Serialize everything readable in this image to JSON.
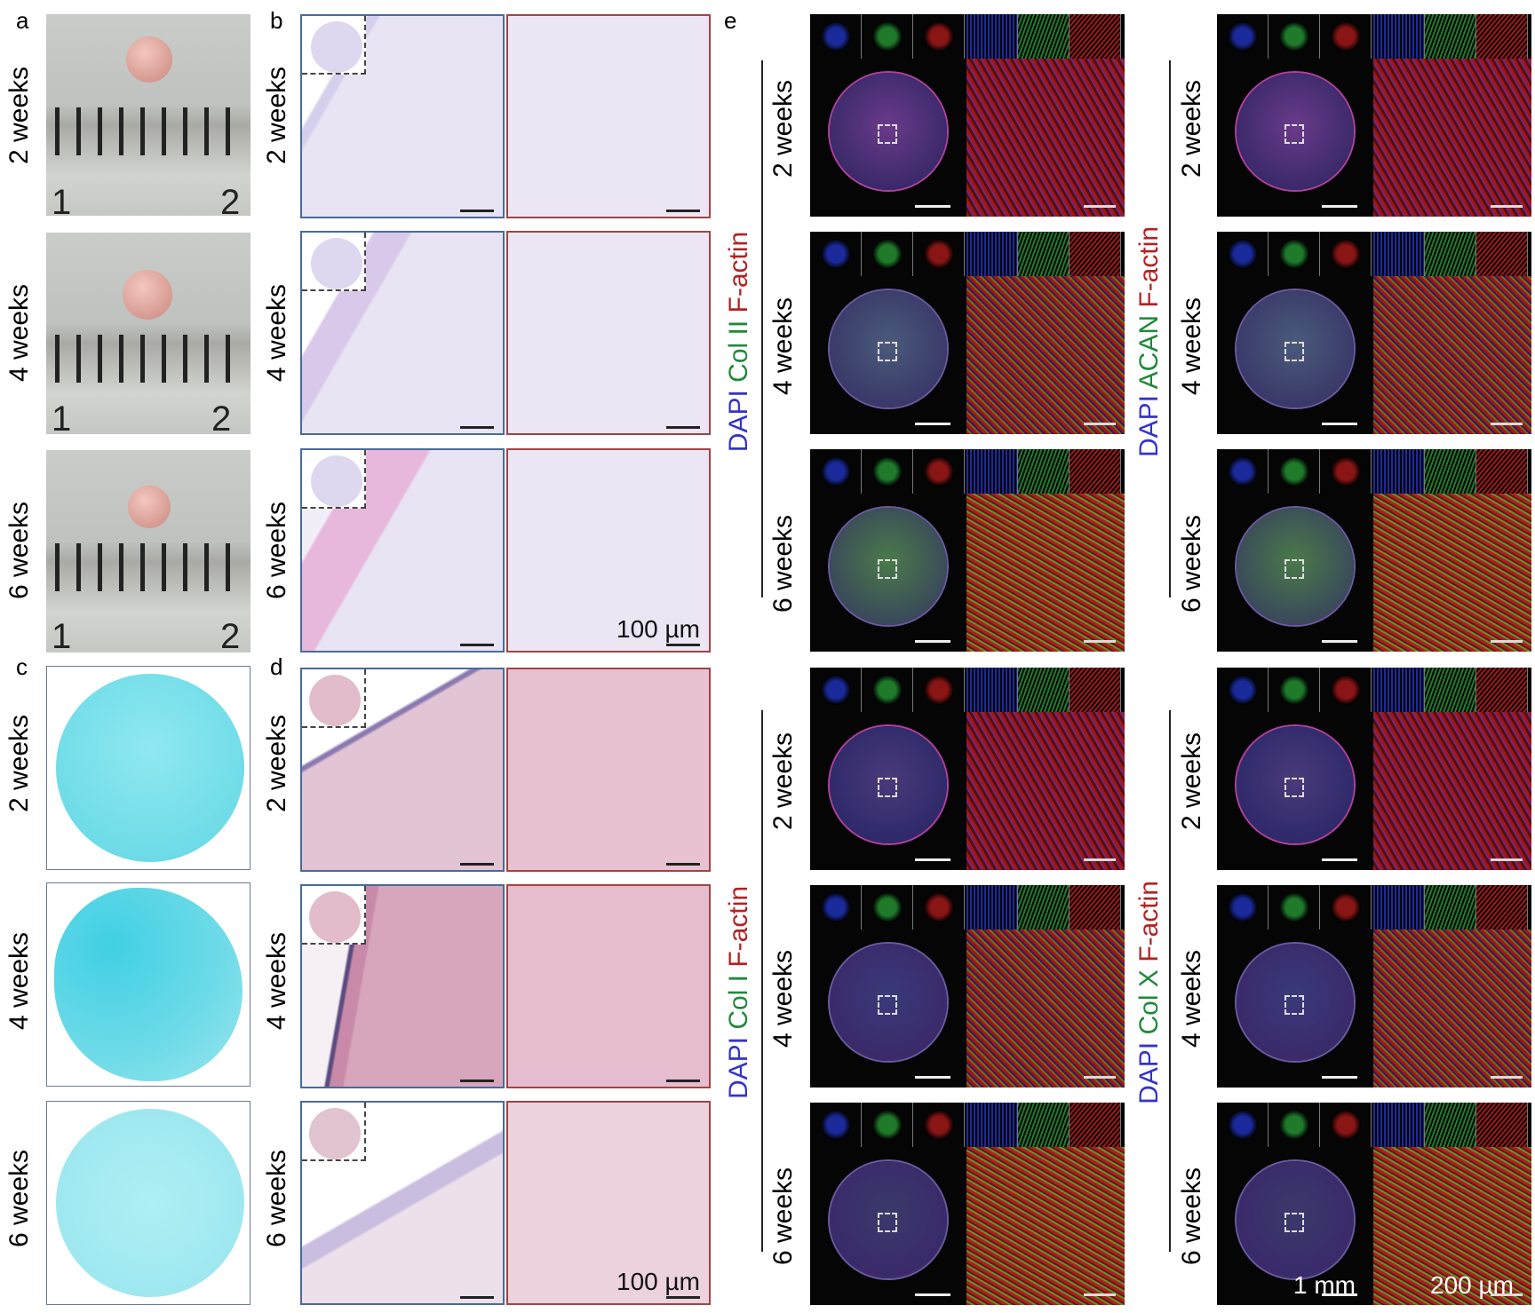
{
  "panel_letters": {
    "a": "a",
    "b": "b",
    "c": "c",
    "d": "d",
    "e": "e"
  },
  "timepoints": [
    "2 weeks",
    "4 weeks",
    "6 weeks"
  ],
  "ruler_numbers": [
    "1",
    "2"
  ],
  "scale_bars": {
    "histology": "100 µm",
    "whole": "1 mm",
    "zoom": "200 µm"
  },
  "stain_sets": {
    "left_top": {
      "dapi": "DAPI",
      "marker": "Col II",
      "factin": "F-actin"
    },
    "left_bottom": {
      "dapi": "DAPI",
      "marker": "Col I",
      "factin": "F-actin"
    },
    "right_top": {
      "dapi": "DAPI",
      "marker": "ACAN",
      "factin": "F-actin"
    },
    "right_bottom": {
      "dapi": "DAPI",
      "marker": "Col X",
      "factin": "F-actin"
    }
  },
  "colors": {
    "dapi": "#3333cc",
    "marker": "#1f8a3a",
    "factin": "#b22222",
    "alcian": "#63d8e6",
    "he_pink": "#e0b8c8",
    "he_purple": "#d9d3ee"
  }
}
